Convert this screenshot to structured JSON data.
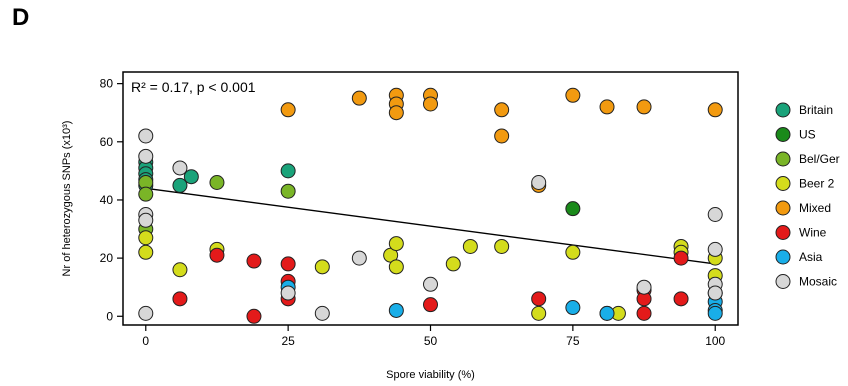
{
  "panel_letter": "D",
  "chart_data": {
    "type": "scatter",
    "xlabel": "Spore viability (%)",
    "ylabel": "Nr of heterozygous SNPs (x10³)",
    "xlim": [
      -4,
      104
    ],
    "ylim": [
      -3,
      84
    ],
    "x_ticks": [
      0,
      25,
      50,
      75,
      100
    ],
    "y_ticks": [
      0,
      20,
      40,
      60,
      80
    ],
    "annotation": "R² = 0.17, p < 0.001",
    "regression_line": {
      "x": [
        0,
        100
      ],
      "y": [
        44,
        18
      ]
    },
    "legend_position": "right",
    "series": [
      {
        "name": "Britain",
        "color": "#1aa37a",
        "points": [
          [
            0,
            53
          ],
          [
            0,
            51
          ],
          [
            0,
            49
          ],
          [
            0,
            47
          ],
          [
            0,
            45
          ],
          [
            6,
            45
          ],
          [
            8,
            48
          ],
          [
            25,
            50
          ]
        ]
      },
      {
        "name": "US",
        "color": "#1a8a1a",
        "points": [
          [
            75,
            37
          ]
        ]
      },
      {
        "name": "Bel/Ger",
        "color": "#7ab527",
        "points": [
          [
            0,
            46
          ],
          [
            0,
            42
          ],
          [
            0,
            30
          ],
          [
            12.5,
            46
          ],
          [
            25,
            43
          ]
        ]
      },
      {
        "name": "Beer 2",
        "color": "#d4dc1c",
        "points": [
          [
            0,
            27
          ],
          [
            0,
            22
          ],
          [
            6,
            16
          ],
          [
            12.5,
            23
          ],
          [
            31,
            17
          ],
          [
            43,
            21
          ],
          [
            44,
            17
          ],
          [
            44,
            25
          ],
          [
            54,
            18
          ],
          [
            57,
            24
          ],
          [
            62.5,
            24
          ],
          [
            69,
            1
          ],
          [
            75,
            22
          ],
          [
            81,
            1
          ],
          [
            83,
            1
          ],
          [
            94,
            24
          ],
          [
            94,
            22
          ],
          [
            100,
            20
          ],
          [
            100,
            14
          ]
        ]
      },
      {
        "name": "Mixed",
        "color": "#f29a10",
        "points": [
          [
            25,
            71
          ],
          [
            37.5,
            75
          ],
          [
            44,
            76
          ],
          [
            44,
            73
          ],
          [
            44,
            70
          ],
          [
            50,
            76
          ],
          [
            50,
            73
          ],
          [
            62.5,
            71
          ],
          [
            62.5,
            62
          ],
          [
            69,
            45
          ],
          [
            75,
            76
          ],
          [
            81,
            72
          ],
          [
            87.5,
            72
          ],
          [
            100,
            71
          ]
        ]
      },
      {
        "name": "Wine",
        "color": "#e31a1a",
        "points": [
          [
            6,
            6
          ],
          [
            12.5,
            21
          ],
          [
            19,
            19
          ],
          [
            19,
            0
          ],
          [
            25,
            18
          ],
          [
            25,
            12
          ],
          [
            25,
            6
          ],
          [
            50,
            4
          ],
          [
            69,
            6
          ],
          [
            87.5,
            9
          ],
          [
            87.5,
            6
          ],
          [
            87.5,
            1
          ],
          [
            94,
            20
          ],
          [
            94,
            6
          ]
        ]
      },
      {
        "name": "Asia",
        "color": "#19aee8",
        "points": [
          [
            25,
            10
          ],
          [
            44,
            2
          ],
          [
            75,
            3
          ],
          [
            81,
            1
          ],
          [
            100,
            8
          ],
          [
            100,
            5
          ],
          [
            100,
            2
          ],
          [
            100,
            1
          ]
        ]
      },
      {
        "name": "Mosaic",
        "color": "#d7d7d7",
        "points": [
          [
            0,
            62
          ],
          [
            0,
            55
          ],
          [
            0,
            35
          ],
          [
            0,
            33
          ],
          [
            0,
            1
          ],
          [
            6,
            51
          ],
          [
            25,
            8
          ],
          [
            31,
            1
          ],
          [
            37.5,
            20
          ],
          [
            50,
            11
          ],
          [
            69,
            46
          ],
          [
            87.5,
            10
          ],
          [
            100,
            35
          ],
          [
            100,
            23
          ],
          [
            100,
            11
          ],
          [
            100,
            8
          ]
        ]
      }
    ]
  }
}
